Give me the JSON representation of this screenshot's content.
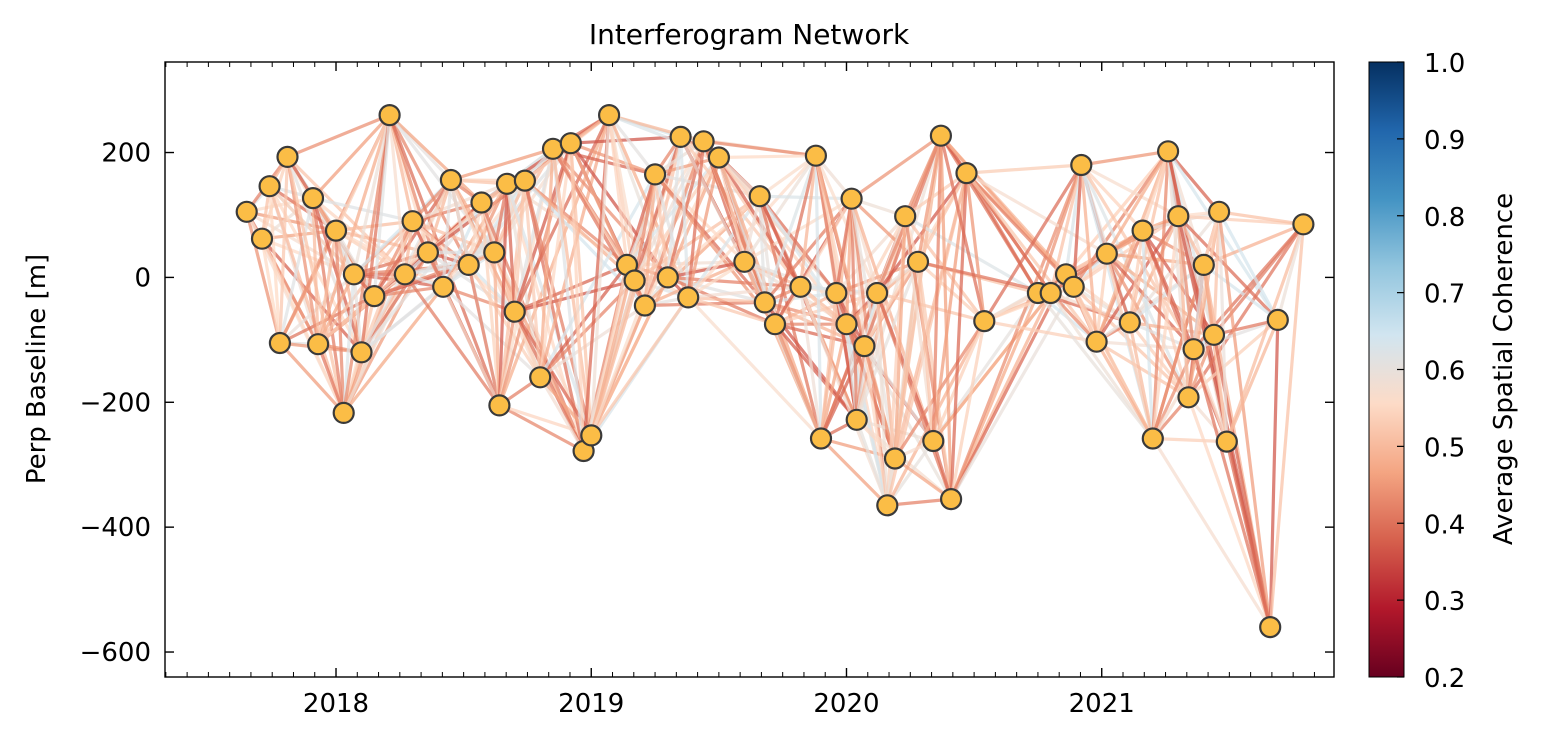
{
  "chart_data": {
    "type": "network",
    "title": "Interferogram Network",
    "xlabel": "",
    "ylabel": "Perp Baseline [m]",
    "xlim": [
      2017.33,
      2021.91
    ],
    "ylim": [
      -640,
      345
    ],
    "x_ticks": [
      2018,
      2019,
      2020,
      2021
    ],
    "x_tick_labels": [
      "2018",
      "2019",
      "2020",
      "2021"
    ],
    "y_ticks": [
      200,
      0,
      -200,
      -400,
      -600
    ],
    "y_tick_labels": [
      "200",
      "0",
      "−200",
      "−400",
      "−600"
    ],
    "colorbar": {
      "label": "Average Spatial Coherence",
      "min": 0.2,
      "max": 1.0,
      "ticks": [
        1.0,
        0.9,
        0.8,
        0.7,
        0.6,
        0.5,
        0.4,
        0.3,
        0.2
      ],
      "tick_labels": [
        "1.0",
        "0.9",
        "0.8",
        "0.7",
        "0.6",
        "0.5",
        "0.4",
        "0.3",
        "0.2"
      ],
      "colormap": "RdBu",
      "colors": [
        "#67001f",
        "#b2182b",
        "#d6604d",
        "#f4a582",
        "#fddbc7",
        "#d1e5f0",
        "#92c5de",
        "#4393c3",
        "#2166ac",
        "#053061"
      ]
    },
    "node_style": {
      "fill": "#fbbd46",
      "edge": "#3a3a3a"
    },
    "nodes": [
      {
        "t": 2017.65,
        "b": 105
      },
      {
        "t": 2017.71,
        "b": 62
      },
      {
        "t": 2017.74,
        "b": 146
      },
      {
        "t": 2017.78,
        "b": -105
      },
      {
        "t": 2017.81,
        "b": 193
      },
      {
        "t": 2017.91,
        "b": 127
      },
      {
        "t": 2017.93,
        "b": -107
      },
      {
        "t": 2018.0,
        "b": 75
      },
      {
        "t": 2018.03,
        "b": -217
      },
      {
        "t": 2018.07,
        "b": 5
      },
      {
        "t": 2018.1,
        "b": -120
      },
      {
        "t": 2018.15,
        "b": -30
      },
      {
        "t": 2018.21,
        "b": 260
      },
      {
        "t": 2018.27,
        "b": 5
      },
      {
        "t": 2018.3,
        "b": 90
      },
      {
        "t": 2018.36,
        "b": 40
      },
      {
        "t": 2018.42,
        "b": -15
      },
      {
        "t": 2018.45,
        "b": 156
      },
      {
        "t": 2018.52,
        "b": 20
      },
      {
        "t": 2018.57,
        "b": 120
      },
      {
        "t": 2018.62,
        "b": 40
      },
      {
        "t": 2018.64,
        "b": -205
      },
      {
        "t": 2018.67,
        "b": 150
      },
      {
        "t": 2018.7,
        "b": -55
      },
      {
        "t": 2018.74,
        "b": 155
      },
      {
        "t": 2018.8,
        "b": -160
      },
      {
        "t": 2018.85,
        "b": 206
      },
      {
        "t": 2018.92,
        "b": 215
      },
      {
        "t": 2018.97,
        "b": -278
      },
      {
        "t": 2019.0,
        "b": -253
      },
      {
        "t": 2019.07,
        "b": 260
      },
      {
        "t": 2019.14,
        "b": 20
      },
      {
        "t": 2019.17,
        "b": -5
      },
      {
        "t": 2019.21,
        "b": -45
      },
      {
        "t": 2019.25,
        "b": 165
      },
      {
        "t": 2019.3,
        "b": 0
      },
      {
        "t": 2019.35,
        "b": 225
      },
      {
        "t": 2019.38,
        "b": -32
      },
      {
        "t": 2019.44,
        "b": 218
      },
      {
        "t": 2019.5,
        "b": 192
      },
      {
        "t": 2019.6,
        "b": 25
      },
      {
        "t": 2019.66,
        "b": 130
      },
      {
        "t": 2019.68,
        "b": -40
      },
      {
        "t": 2019.72,
        "b": -75
      },
      {
        "t": 2019.82,
        "b": -15
      },
      {
        "t": 2019.88,
        "b": 195
      },
      {
        "t": 2019.9,
        "b": -258
      },
      {
        "t": 2019.96,
        "b": -25
      },
      {
        "t": 2020.0,
        "b": -75
      },
      {
        "t": 2020.02,
        "b": 126
      },
      {
        "t": 2020.04,
        "b": -228
      },
      {
        "t": 2020.07,
        "b": -110
      },
      {
        "t": 2020.12,
        "b": -25
      },
      {
        "t": 2020.16,
        "b": -365
      },
      {
        "t": 2020.19,
        "b": -290
      },
      {
        "t": 2020.23,
        "b": 98
      },
      {
        "t": 2020.28,
        "b": 25
      },
      {
        "t": 2020.34,
        "b": -262
      },
      {
        "t": 2020.37,
        "b": 227
      },
      {
        "t": 2020.41,
        "b": -355
      },
      {
        "t": 2020.47,
        "b": 167
      },
      {
        "t": 2020.54,
        "b": -70
      },
      {
        "t": 2020.75,
        "b": -25
      },
      {
        "t": 2020.8,
        "b": -25
      },
      {
        "t": 2020.86,
        "b": 5
      },
      {
        "t": 2020.89,
        "b": -15
      },
      {
        "t": 2020.92,
        "b": 180
      },
      {
        "t": 2020.98,
        "b": -103
      },
      {
        "t": 2021.02,
        "b": 38
      },
      {
        "t": 2021.11,
        "b": -72
      },
      {
        "t": 2021.16,
        "b": 75
      },
      {
        "t": 2021.2,
        "b": -258
      },
      {
        "t": 2021.26,
        "b": 202
      },
      {
        "t": 2021.3,
        "b": 98
      },
      {
        "t": 2021.34,
        "b": -192
      },
      {
        "t": 2021.36,
        "b": -115
      },
      {
        "t": 2021.4,
        "b": 20
      },
      {
        "t": 2021.44,
        "b": -92
      },
      {
        "t": 2021.46,
        "b": 105
      },
      {
        "t": 2021.49,
        "b": -263
      },
      {
        "t": 2021.66,
        "b": -560
      },
      {
        "t": 2021.69,
        "b": -68
      },
      {
        "t": 2021.79,
        "b": 85
      }
    ]
  }
}
